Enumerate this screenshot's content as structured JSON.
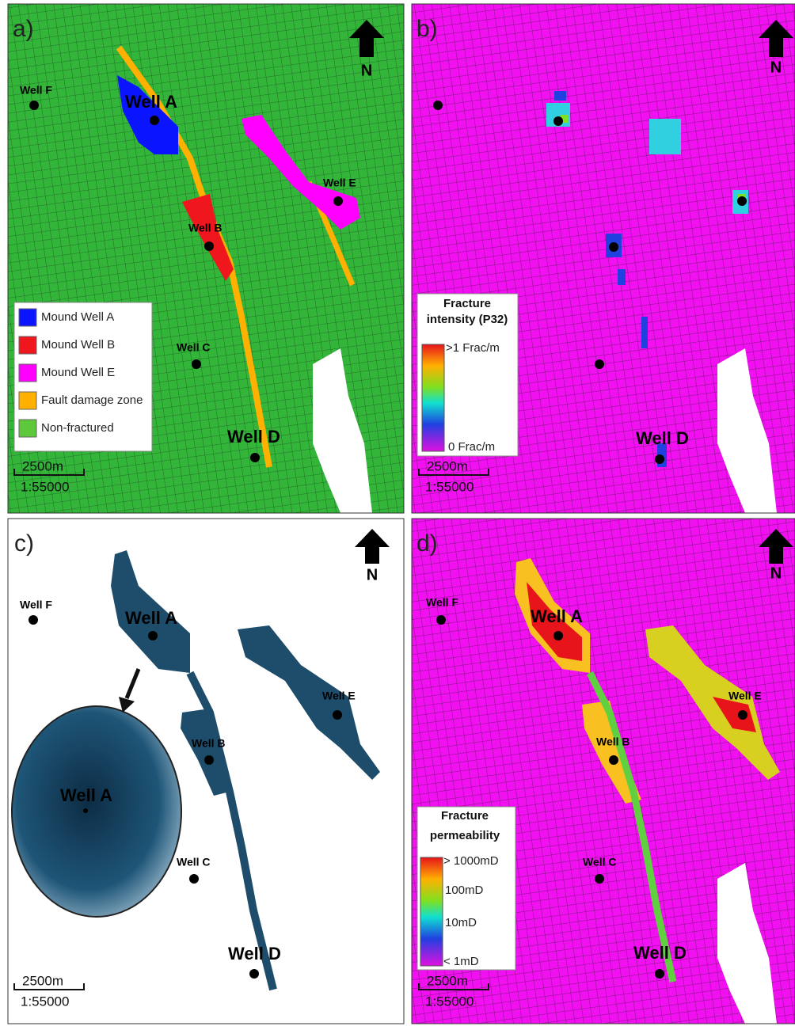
{
  "panels": [
    {
      "label": "a)",
      "north": "N",
      "wells": [
        "Well F",
        "Well A",
        "Well E",
        "Well B",
        "Well C",
        "Well D"
      ],
      "legend": {
        "items": [
          {
            "label": "Mound Well A",
            "color": "#0a14ff"
          },
          {
            "label": "Mound Well B",
            "color": "#f0161e"
          },
          {
            "label": "Mound Well E",
            "color": "#ff00ff"
          },
          {
            "label": "Fault damage zone",
            "color": "#ffb000"
          },
          {
            "label": "Non-fractured",
            "color": "#5cc83a"
          }
        ]
      },
      "scale": {
        "distance": "2500m",
        "ratio": "1:55000"
      }
    },
    {
      "label": "b)",
      "north": "N",
      "wells": [
        "Well D"
      ],
      "legend": {
        "title": [
          "Fracture",
          "intensity (P32)"
        ],
        "ticks": [
          ">1 Frac/m",
          "0 Frac/m"
        ]
      },
      "scale": {
        "distance": "2500m",
        "ratio": "1:55000"
      }
    },
    {
      "label": "c)",
      "north": "N",
      "wells": [
        "Well F",
        "Well A",
        "Well E",
        "Well B",
        "Well C",
        "Well D"
      ],
      "inset": "Well A",
      "scale": {
        "distance": "2500m",
        "ratio": "1:55000"
      }
    },
    {
      "label": "d)",
      "north": "N",
      "wells": [
        "Well F",
        "Well A",
        "Well E",
        "Well B",
        "Well C",
        "Well D"
      ],
      "legend": {
        "title": [
          "Fracture",
          "permeability"
        ],
        "ticks": [
          "> 1000mD",
          "100mD",
          "10mD",
          "< 1mD"
        ]
      },
      "scale": {
        "distance": "2500m",
        "ratio": "1:55000"
      }
    }
  ]
}
